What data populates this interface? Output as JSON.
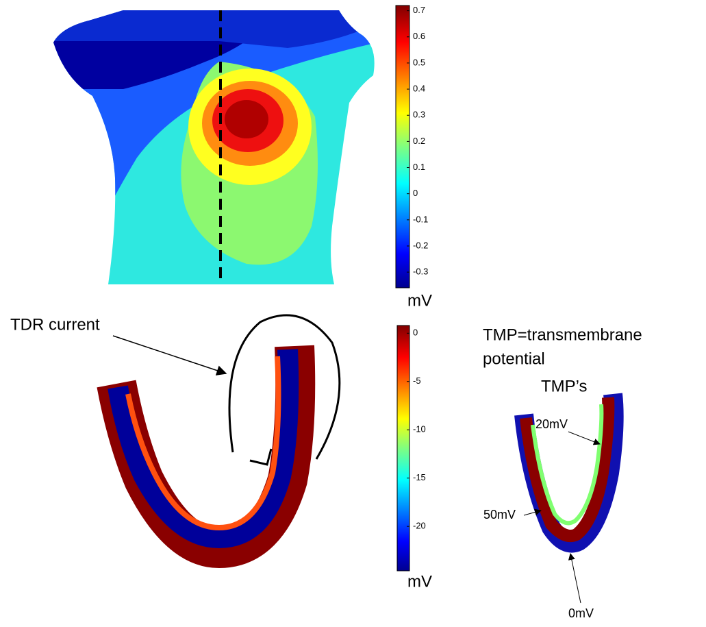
{
  "torso_map": {
    "colorbar": {
      "ticks": [
        0.7,
        0.6,
        0.5,
        0.4,
        0.3,
        0.2,
        0.1,
        0,
        -0.1,
        -0.2,
        -0.3
      ],
      "range": [
        -0.36,
        0.72
      ],
      "unit": "mV"
    }
  },
  "heart_section": {
    "annotation": "TDR current",
    "colorbar": {
      "ticks": [
        0,
        -5,
        -10,
        -15,
        -20
      ],
      "range": [
        -24.6,
        0.8
      ],
      "unit": "mV"
    }
  },
  "tmp_panel": {
    "title_line1": "TMP=transmembrane",
    "title_line2": "potential",
    "subtitle": "TMP’s",
    "labels": [
      "20mV",
      "50mV",
      "0mV"
    ]
  }
}
